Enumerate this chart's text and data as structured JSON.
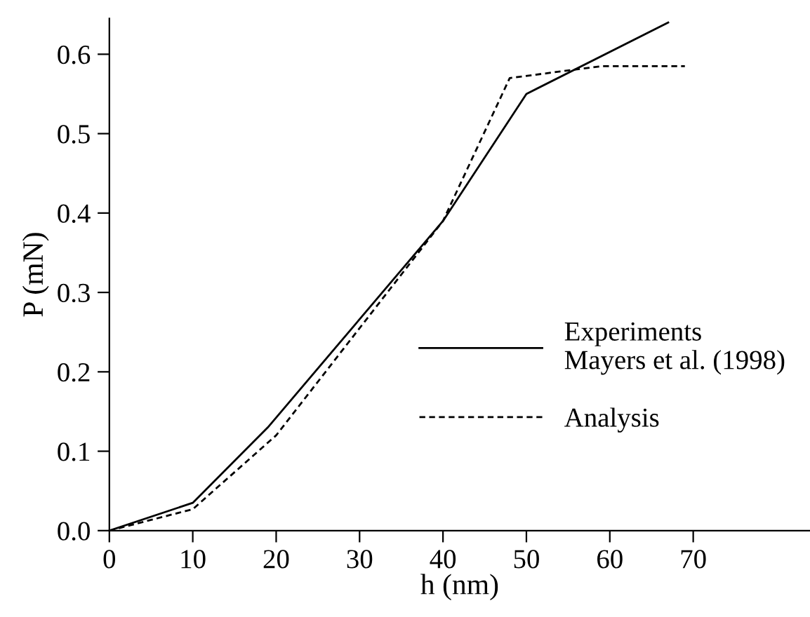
{
  "chart_data": {
    "type": "line",
    "xlabel": "h (nm)",
    "ylabel": "P (mN)",
    "xlim": [
      0,
      84
    ],
    "ylim": [
      0,
      0.645
    ],
    "xticks": [
      0,
      10,
      20,
      30,
      40,
      50,
      60,
      70
    ],
    "yticks": [
      {
        "value": 0,
        "label": "0.0"
      },
      0.1,
      0.2,
      0.3,
      0.4,
      0.5,
      0.6
    ],
    "series": [
      {
        "name": "Experiments\nMayers et al. (1998)",
        "color": "#000000",
        "line_style": "solid",
        "x": [
          0,
          10,
          19,
          40,
          50,
          67
        ],
        "values": [
          0,
          0.035,
          0.13,
          0.39,
          0.55,
          0.64
        ]
      },
      {
        "name": "Analysis",
        "color": "#000000",
        "line_style": "dashed",
        "x": [
          0,
          10,
          20,
          40,
          48,
          59,
          69
        ],
        "values": [
          0,
          0.027,
          0.12,
          0.39,
          0.57,
          0.585,
          0.585
        ]
      }
    ],
    "legend": "right",
    "grid": false
  }
}
